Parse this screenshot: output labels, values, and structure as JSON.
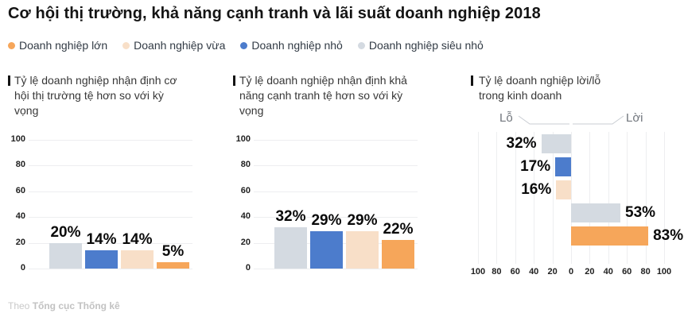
{
  "title": "Cơ hội thị trường, khả năng cạnh tranh và lãi suất doanh nghiệp 2018",
  "legend": [
    {
      "label": "Doanh nghiệp lớn",
      "color": "#F6A65A"
    },
    {
      "label": "Doanh nghiệp vừa",
      "color": "#F8DFC8"
    },
    {
      "label": "Doanh nghiệp nhỏ",
      "color": "#4C7CCC"
    },
    {
      "label": "Doanh nghiệp siêu nhỏ",
      "color": "#D4DAE1"
    }
  ],
  "footer": {
    "prefix": "Theo ",
    "source": "Tổng cục Thống kê"
  },
  "chart_data": [
    {
      "type": "bar",
      "title": "Tỷ lệ doanh nghiệp nhận định cơ hội thị trường tệ hơn so với kỳ vọng",
      "categories": [
        "Doanh nghiệp siêu nhỏ",
        "Doanh nghiệp nhỏ",
        "Doanh nghiệp vừa",
        "Doanh nghiệp lớn"
      ],
      "values": [
        20,
        14,
        14,
        5
      ],
      "labels": [
        "20%",
        "14%",
        "14%",
        "5%"
      ],
      "colors": [
        "#D4DAE1",
        "#4C7CCC",
        "#F8DFC8",
        "#F6A65A"
      ],
      "ylim": [
        0,
        100
      ],
      "yticks": [
        0,
        20,
        40,
        60,
        80,
        100
      ],
      "grid": "horizontal"
    },
    {
      "type": "bar",
      "title": "Tỷ lệ doanh nghiệp nhận định khả năng cạnh tranh tệ hơn so với kỳ vọng",
      "categories": [
        "Doanh nghiệp siêu nhỏ",
        "Doanh nghiệp nhỏ",
        "Doanh nghiệp vừa",
        "Doanh nghiệp lớn"
      ],
      "values": [
        32,
        29,
        29,
        22
      ],
      "labels": [
        "32%",
        "29%",
        "29%",
        "22%"
      ],
      "colors": [
        "#D4DAE1",
        "#4C7CCC",
        "#F8DFC8",
        "#F6A65A"
      ],
      "ylim": [
        0,
        100
      ],
      "yticks": [
        0,
        20,
        40,
        60,
        80,
        100
      ],
      "grid": "horizontal"
    },
    {
      "type": "bar-horizontal-diverging",
      "title": "Tỷ lệ doanh nghiệp lời/lỗ trong kinh doanh",
      "left_label": "Lỗ",
      "right_label": "Lời",
      "rows": [
        {
          "category": "Doanh nghiệp siêu nhỏ",
          "side": "lỗ",
          "value": 32,
          "label": "32%",
          "color": "#D4DAE1"
        },
        {
          "category": "Doanh nghiệp nhỏ",
          "side": "lỗ",
          "value": 17,
          "label": "17%",
          "color": "#4C7CCC"
        },
        {
          "category": "Doanh nghiệp vừa",
          "side": "lỗ",
          "value": 16,
          "label": "16%",
          "color": "#F8DFC8"
        },
        {
          "category": "Doanh nghiệp siêu nhỏ",
          "side": "lời",
          "value": 53,
          "label": "53%",
          "color": "#D4DAE1"
        },
        {
          "category": "Doanh nghiệp lớn",
          "side": "lời",
          "value": 83,
          "label": "83%",
          "color": "#F6A65A"
        }
      ],
      "xlim": [
        -100,
        100
      ],
      "xticks": [
        100,
        80,
        60,
        40,
        20,
        0,
        20,
        40,
        60,
        80,
        100
      ],
      "grid": "vertical"
    }
  ]
}
